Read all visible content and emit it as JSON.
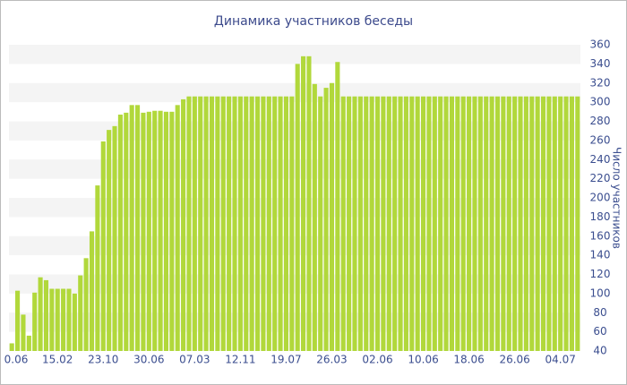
{
  "chart_data": {
    "type": "bar",
    "title": "Динамика участников беседы",
    "y_axis_label": "Число участников",
    "color": "#b1d83b",
    "grid": true,
    "ylim": [
      40,
      360
    ],
    "yticks": [
      40,
      60,
      80,
      100,
      120,
      140,
      160,
      180,
      200,
      220,
      240,
      260,
      280,
      300,
      320,
      340,
      360
    ],
    "categories": [
      "0.06",
      null,
      null,
      null,
      null,
      null,
      null,
      null,
      "15.02",
      null,
      null,
      null,
      null,
      null,
      null,
      null,
      "23.10",
      null,
      null,
      null,
      null,
      null,
      null,
      null,
      "30.06",
      null,
      null,
      null,
      null,
      null,
      null,
      null,
      "07.03",
      null,
      null,
      null,
      null,
      null,
      null,
      null,
      "12.11",
      null,
      null,
      null,
      null,
      null,
      null,
      null,
      "19.07",
      null,
      null,
      null,
      null,
      null,
      null,
      null,
      "26.03",
      null,
      null,
      null,
      null,
      null,
      null,
      null,
      "02.06",
      null,
      null,
      null,
      null,
      null,
      null,
      null,
      "10.06",
      null,
      null,
      null,
      null,
      null,
      null,
      null,
      "18.06",
      null,
      null,
      null,
      null,
      null,
      null,
      null,
      "26.06",
      null,
      null,
      null,
      null,
      null,
      null,
      null,
      "04.07",
      null,
      null,
      null
    ],
    "values": [
      48,
      103,
      78,
      56,
      101,
      117,
      114,
      105,
      105,
      105,
      105,
      100,
      119,
      137,
      165,
      213,
      259,
      271,
      275,
      287,
      289,
      297,
      297,
      289,
      290,
      291,
      291,
      290,
      290,
      297,
      303,
      306,
      306,
      306,
      306,
      306,
      306,
      306,
      306,
      306,
      306,
      306,
      306,
      306,
      306,
      306,
      306,
      306,
      306,
      306,
      340,
      348,
      348,
      319,
      306,
      315,
      320,
      342,
      306,
      306,
      306,
      306,
      306,
      306,
      306,
      306,
      306,
      306,
      306,
      306,
      306,
      306,
      306,
      306,
      306,
      306,
      306,
      306,
      306,
      306,
      306,
      306,
      306,
      306,
      306,
      306,
      306,
      306,
      306,
      306,
      306,
      306,
      306,
      306,
      306,
      306,
      306,
      306,
      306,
      306
    ]
  }
}
